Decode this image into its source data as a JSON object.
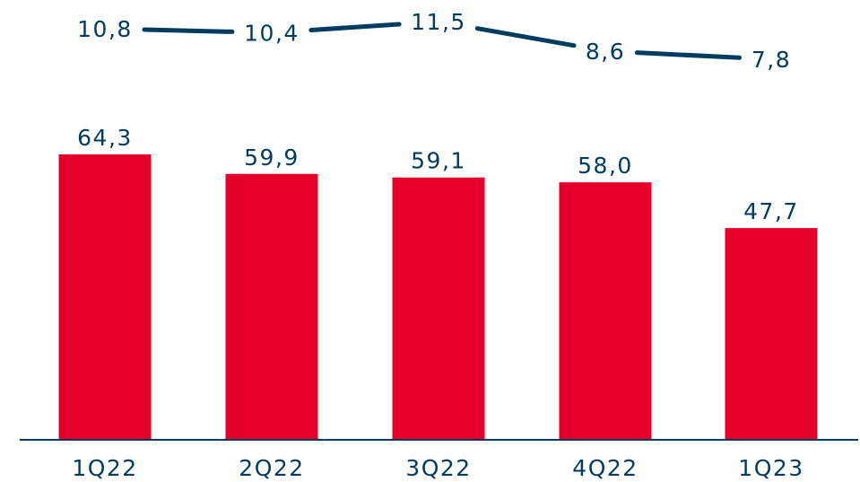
{
  "chart_data": {
    "type": "bar",
    "categories": [
      "1Q22",
      "2Q22",
      "3Q22",
      "4Q22",
      "1Q23"
    ],
    "series": [
      {
        "type": "bar",
        "values": [
          64.3,
          59.9,
          59.1,
          58.0,
          47.7
        ],
        "labels": [
          "64,3",
          "59,9",
          "59,1",
          "58,0",
          "47,7"
        ],
        "color": "#e4002b"
      },
      {
        "type": "line",
        "values": [
          10.8,
          10.4,
          11.5,
          8.6,
          7.8
        ],
        "labels": [
          "10,8",
          "10,4",
          "11,5",
          "8,6",
          "7,8"
        ],
        "color": "#003c5f"
      }
    ],
    "title": "",
    "xlabel": "",
    "ylabel": "",
    "ylim": [
      0,
      64.3
    ],
    "grid": false,
    "legend": "none",
    "colors": {
      "text": "#003c5f",
      "axis": "#003c5f"
    }
  }
}
